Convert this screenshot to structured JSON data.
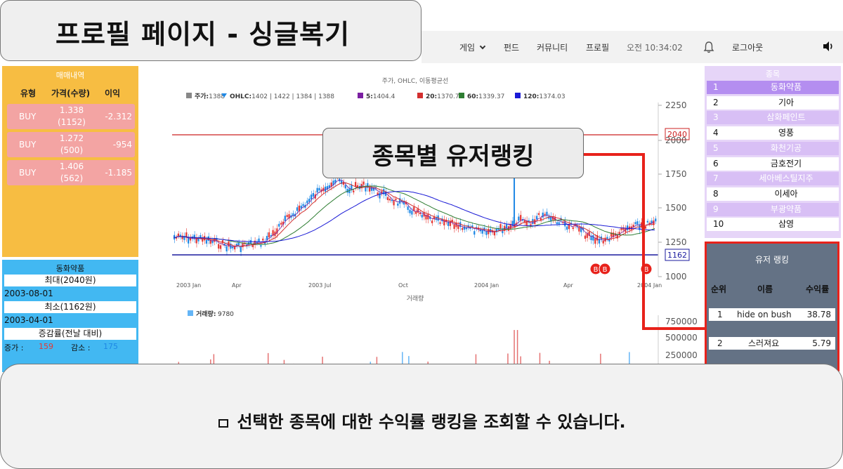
{
  "callouts": {
    "title": "프로필 페이지 - 싱글복기",
    "ranking": "종목별 유저랭킹",
    "description": "선택한 종목에 대한 수익률 랭킹을 조회할 수 있습니다."
  },
  "nav": {
    "game": "게임",
    "fund": "펀드",
    "community": "커뮤니티",
    "profile": "프로필",
    "time": "오전 10:34:02",
    "logout": "로그아웃",
    "icons": [
      "chevron-down-icon",
      "bell-icon",
      "speaker-icon"
    ]
  },
  "trade_history": {
    "title": "매매내역",
    "headers": [
      "유형",
      "가격(수량)",
      "이익"
    ],
    "rows": [
      {
        "type": "BUY",
        "price": "1.338",
        "qty": "(1152)",
        "profit": "-2.312"
      },
      {
        "type": "BUY",
        "price": "1.272",
        "qty": "(500)",
        "profit": "-954"
      },
      {
        "type": "BUY",
        "price": "1.406",
        "qty": "(562)",
        "profit": "-1.185"
      }
    ]
  },
  "stock_info": {
    "name": "동화약품",
    "max_label": "최대(2040원)",
    "max_date": "2003-08-01",
    "min_label": "최소(1162원)",
    "min_date": "2003-04-01",
    "change_label": "증감률(전날 대비)",
    "increase_label": "증가 :",
    "increase_value": "159",
    "decrease_label": "감소 :",
    "decrease_value": "175"
  },
  "chart": {
    "title": "주가, OHLC, 이동평균선",
    "legend": [
      {
        "label": "주가:",
        "value": "1388",
        "color": "#888888"
      },
      {
        "label": "OHLC:",
        "value": "1402 | 1422 | 1384 | 1388",
        "color": "#1e88e5"
      },
      {
        "label": "5:",
        "value": "1404.4",
        "color": "#7b1fa2"
      },
      {
        "label": "20:",
        "value": "1370.7",
        "color": "#d32f2f"
      },
      {
        "label": "60:",
        "value": "1339.37",
        "color": "#2e7d32"
      },
      {
        "label": "120:",
        "value": "1374.03",
        "color": "#1a1ad6"
      }
    ],
    "y_ticks": [
      "2250",
      "2000",
      "1750",
      "1500",
      "1250",
      "1000"
    ],
    "x_ticks": [
      "2003 Jan",
      "Apr",
      "2003 Jul",
      "Oct",
      "2004 Jan",
      "Apr",
      "2004 Jan"
    ],
    "max_marker": "2040",
    "min_marker": "1162",
    "buy_markers": [
      "B",
      "B",
      "B"
    ],
    "volume_title": "거래량",
    "volume_legend": {
      "label": "거래량:",
      "value": "9780",
      "color": "#64b5f6"
    },
    "volume_ticks": [
      "750000",
      "500000",
      "250000"
    ]
  },
  "stock_list": {
    "title": "종목",
    "items": [
      {
        "num": "1",
        "name": "동화약품"
      },
      {
        "num": "2",
        "name": "기아"
      },
      {
        "num": "3",
        "name": "삼화페인트"
      },
      {
        "num": "4",
        "name": "영풍"
      },
      {
        "num": "5",
        "name": "화천기공"
      },
      {
        "num": "6",
        "name": "금호전기"
      },
      {
        "num": "7",
        "name": "세아베스틸지주"
      },
      {
        "num": "8",
        "name": "이세아"
      },
      {
        "num": "9",
        "name": "부광약품"
      },
      {
        "num": "10",
        "name": "삼영"
      }
    ]
  },
  "ranking": {
    "title": "유저 랭킹",
    "headers": [
      "순위",
      "이름",
      "수익률"
    ],
    "rows": [
      {
        "rank": "1",
        "name": "hide on bush",
        "return": "38.78"
      },
      {
        "rank": "2",
        "name": "스러져요",
        "return": "5.79"
      }
    ]
  }
}
